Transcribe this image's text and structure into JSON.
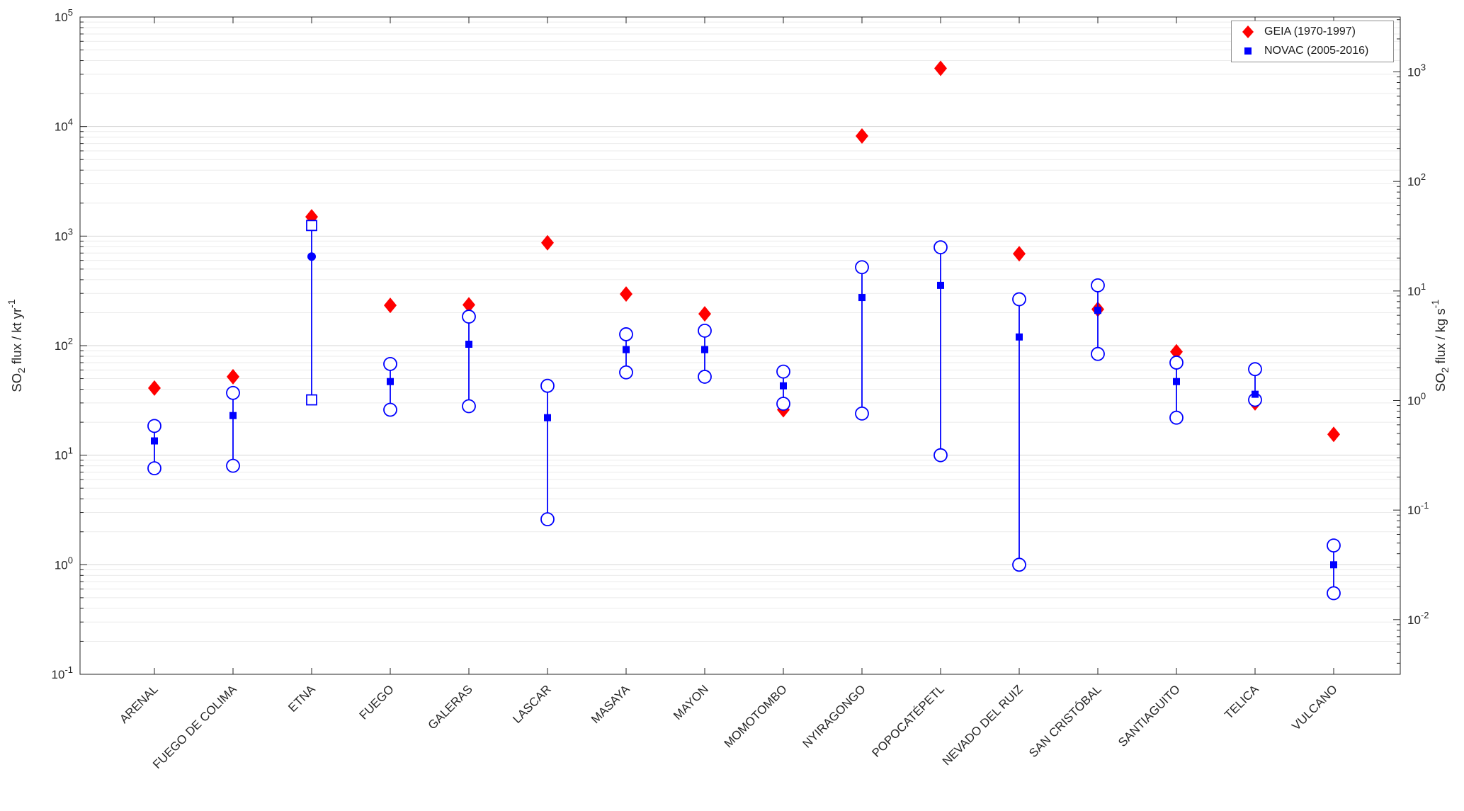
{
  "figure": {
    "left_axis_label": {
      "pre": "SO",
      "sub": "2",
      "main": " flux / kt yr",
      "sup": "-1"
    },
    "right_axis_label": {
      "pre": "SO",
      "sub": "2",
      "main": " flux / kg s",
      "sup": "-1"
    }
  },
  "chart_data": {
    "type": "scatter",
    "title": "",
    "y_scale": "log",
    "ylim": [
      0.1,
      100000
    ],
    "ylabel_left": "SO2 flux / kt yr^-1",
    "ylabel_right": "SO2 flux / kg s^-1",
    "grid": "horizontal major+minor (log), no vertical gridlines",
    "legend_position": "top-right inside axes",
    "left_ticks_exponents": [
      -1,
      0,
      1,
      2,
      3,
      4,
      5
    ],
    "right_ticks_exponents": [
      3,
      2,
      1,
      0,
      -1,
      -2
    ],
    "right_axis_conversion_kg_s_per_kt_yr": 0.0317,
    "categories": [
      "ARENAL",
      "FUEGO DE COLIMA",
      "ETNA",
      "FUEGO",
      "GALERAS",
      "LASCAR",
      "MASAYA",
      "MAYON",
      "MOMOTOMBO",
      "NYIRAGONGO",
      "POPOCATÉPETL",
      "NEVADO DEL RUIZ",
      "SAN CRISTÓBAL",
      "SANTIAGUITO",
      "TELICA",
      "VULCANO"
    ],
    "series": [
      {
        "name": "GEIA (1970-1997)",
        "marker": "diamond-filled",
        "color": "#ff0000",
        "values": [
          41,
          52,
          1500,
          233,
          236,
          870,
          296,
          195,
          26,
          8200,
          34000,
          690,
          215,
          88,
          30,
          15.5
        ]
      },
      {
        "name": "NOVAC (2005-2016)",
        "marker": "square-filled",
        "color": "#0000ff",
        "median": [
          13.5,
          23,
          650,
          47,
          103,
          22,
          92,
          92,
          43,
          275,
          355,
          120,
          210,
          47,
          36,
          1.0
        ],
        "upper": [
          18.5,
          37,
          1250,
          68,
          184,
          43,
          127,
          137,
          58,
          520,
          790,
          265,
          355,
          70,
          61,
          1.5
        ],
        "lower": [
          7.6,
          8,
          32,
          26,
          28,
          2.6,
          57,
          52,
          29.5,
          24,
          10,
          1.0,
          84,
          22,
          32,
          0.55
        ],
        "median_marker_default": "square-filled",
        "end_marker_default": "circle-open",
        "per_point_marker_overrides": {
          "2": {
            "median_marker": "circle-filled",
            "end_marker": "square-open"
          }
        }
      }
    ]
  }
}
